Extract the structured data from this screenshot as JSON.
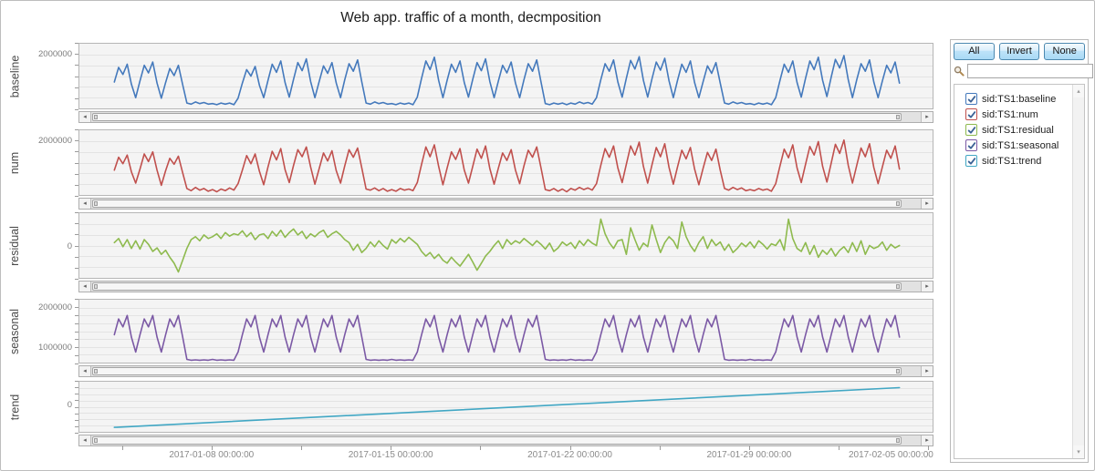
{
  "title": "Web app. traffic of a month, decmposition",
  "controls": {
    "all_label": "All",
    "invert_label": "Invert",
    "none_label": "None",
    "search_value": "",
    "search_placeholder": ""
  },
  "legend": {
    "items": [
      {
        "label": "sid:TS1:baseline",
        "color": "#4479BC",
        "checked": true
      },
      {
        "label": "sid:TS1:num",
        "color": "#C0504D",
        "checked": true
      },
      {
        "label": "sid:TS1:residual",
        "color": "#8EBA4E",
        "checked": true
      },
      {
        "label": "sid:TS1:seasonal",
        "color": "#7B59A5",
        "checked": true
      },
      {
        "label": "sid:TS1:trend",
        "color": "#41A7C4",
        "checked": true
      }
    ],
    "check_color": "#3D6396"
  },
  "chart_data": {
    "type": "line",
    "title": "Web app. traffic of a month, decmposition",
    "unit_scale": 1000000,
    "x_axis": {
      "unit": "days since 2017-01-01 00:00",
      "range": [
        2.8,
        36.2
      ],
      "ticks": [
        {
          "t": 8,
          "label": "2017-01-08 00:00:00"
        },
        {
          "t": 15,
          "label": "2017-01-15 00:00:00"
        },
        {
          "t": 22,
          "label": "2017-01-22 00:00:00"
        },
        {
          "t": 29,
          "label": "2017-01-29 00:00:00"
        },
        {
          "t": 36,
          "label": "2017-02-05 00:00:00"
        }
      ],
      "minor_ticks": [
        4.5,
        8,
        11.5,
        15,
        18.5,
        22,
        25.5,
        29,
        32.5,
        36
      ]
    },
    "panels": [
      {
        "name": "baseline",
        "color": "#4479BC",
        "ylim": [
          1.0,
          2.2
        ],
        "grid_divisions": 6,
        "yticks": [
          {
            "v": 2.0,
            "label": "2000000"
          }
        ],
        "t0": 4.1667,
        "dt": 0.16667,
        "values": [
          1.49,
          1.76,
          1.63,
          1.82,
          1.45,
          1.2,
          1.51,
          1.8,
          1.66,
          1.86,
          1.47,
          1.19,
          1.48,
          1.74,
          1.61,
          1.8,
          1.44,
          1.1,
          1.08,
          1.12,
          1.09,
          1.11,
          1.08,
          1.09,
          1.07,
          1.1,
          1.08,
          1.1,
          1.07,
          1.19,
          1.47,
          1.72,
          1.6,
          1.78,
          1.43,
          1.2,
          1.52,
          1.82,
          1.67,
          1.88,
          1.48,
          1.21,
          1.54,
          1.85,
          1.7,
          1.92,
          1.5,
          1.2,
          1.5,
          1.79,
          1.65,
          1.85,
          1.47,
          1.2,
          1.53,
          1.83,
          1.69,
          1.9,
          1.49,
          1.1,
          1.08,
          1.12,
          1.09,
          1.11,
          1.08,
          1.09,
          1.07,
          1.1,
          1.08,
          1.1,
          1.07,
          1.21,
          1.56,
          1.88,
          1.72,
          1.95,
          1.52,
          1.2,
          1.52,
          1.82,
          1.67,
          1.88,
          1.48,
          1.21,
          1.54,
          1.85,
          1.7,
          1.92,
          1.5,
          1.2,
          1.51,
          1.8,
          1.66,
          1.86,
          1.47,
          1.2,
          1.53,
          1.83,
          1.69,
          1.9,
          1.49,
          1.09,
          1.07,
          1.1,
          1.08,
          1.1,
          1.07,
          1.1,
          1.08,
          1.12,
          1.09,
          1.11,
          1.08,
          1.2,
          1.53,
          1.83,
          1.69,
          1.9,
          1.49,
          1.21,
          1.56,
          1.89,
          1.73,
          1.96,
          1.52,
          1.21,
          1.55,
          1.86,
          1.71,
          1.93,
          1.51,
          1.2,
          1.52,
          1.82,
          1.67,
          1.88,
          1.48,
          1.2,
          1.5,
          1.79,
          1.65,
          1.85,
          1.47,
          1.1,
          1.08,
          1.12,
          1.09,
          1.11,
          1.08,
          1.09,
          1.07,
          1.1,
          1.08,
          1.1,
          1.07,
          1.2,
          1.52,
          1.82,
          1.67,
          1.88,
          1.48,
          1.21,
          1.56,
          1.88,
          1.72,
          1.95,
          1.52,
          1.22,
          1.58,
          1.91,
          1.75,
          1.98,
          1.53,
          1.2,
          1.53,
          1.83,
          1.69,
          1.9,
          1.49,
          1.2,
          1.51,
          1.8,
          1.66,
          1.86,
          1.47
        ]
      },
      {
        "name": "num",
        "color": "#C0504D",
        "ylim": [
          1.0,
          2.2
        ],
        "grid_divisions": 6,
        "yticks": [
          {
            "v": 2.0,
            "label": "2000000"
          }
        ],
        "t0": 4.1667,
        "dt": 0.16667,
        "values": [
          1.46,
          1.7,
          1.58,
          1.74,
          1.43,
          1.22,
          1.48,
          1.76,
          1.62,
          1.8,
          1.46,
          1.18,
          1.45,
          1.68,
          1.57,
          1.72,
          1.41,
          1.12,
          1.08,
          1.14,
          1.09,
          1.12,
          1.07,
          1.1,
          1.06,
          1.11,
          1.08,
          1.13,
          1.09,
          1.21,
          1.46,
          1.73,
          1.58,
          1.76,
          1.44,
          1.19,
          1.52,
          1.81,
          1.65,
          1.86,
          1.47,
          1.23,
          1.55,
          1.84,
          1.71,
          1.89,
          1.52,
          1.2,
          1.49,
          1.78,
          1.63,
          1.82,
          1.45,
          1.22,
          1.54,
          1.84,
          1.7,
          1.87,
          1.5,
          1.11,
          1.09,
          1.13,
          1.08,
          1.12,
          1.07,
          1.1,
          1.07,
          1.12,
          1.09,
          1.11,
          1.08,
          1.23,
          1.57,
          1.89,
          1.71,
          1.93,
          1.53,
          1.19,
          1.5,
          1.8,
          1.66,
          1.86,
          1.46,
          1.22,
          1.53,
          1.85,
          1.68,
          1.91,
          1.49,
          1.2,
          1.5,
          1.78,
          1.64,
          1.84,
          1.46,
          1.21,
          1.54,
          1.83,
          1.7,
          1.89,
          1.5,
          1.1,
          1.08,
          1.12,
          1.07,
          1.11,
          1.06,
          1.12,
          1.09,
          1.14,
          1.1,
          1.13,
          1.09,
          1.21,
          1.55,
          1.86,
          1.7,
          1.91,
          1.5,
          1.23,
          1.57,
          1.91,
          1.74,
          1.98,
          1.53,
          1.22,
          1.56,
          1.88,
          1.71,
          1.95,
          1.51,
          1.2,
          1.52,
          1.83,
          1.67,
          1.88,
          1.48,
          1.19,
          1.5,
          1.79,
          1.64,
          1.85,
          1.46,
          1.12,
          1.09,
          1.14,
          1.1,
          1.13,
          1.08,
          1.1,
          1.08,
          1.12,
          1.09,
          1.11,
          1.07,
          1.21,
          1.54,
          1.85,
          1.69,
          1.93,
          1.5,
          1.23,
          1.57,
          1.9,
          1.74,
          1.99,
          1.53,
          1.24,
          1.59,
          1.94,
          1.77,
          2.02,
          1.55,
          1.22,
          1.55,
          1.87,
          1.71,
          1.95,
          1.51,
          1.21,
          1.52,
          1.83,
          1.68,
          1.91,
          1.48
        ]
      },
      {
        "name": "residual",
        "color": "#8EBA4E",
        "ylim": [
          -0.55,
          0.55
        ],
        "grid_divisions": 6,
        "yticks": [
          {
            "v": 0,
            "label": "0"
          }
        ],
        "t0": 4.1667,
        "dt": 0.16667,
        "values": [
          0.05,
          0.12,
          -0.02,
          0.1,
          -0.05,
          0.08,
          -0.06,
          0.1,
          0.02,
          -0.1,
          -0.04,
          -0.15,
          -0.08,
          -0.2,
          -0.3,
          -0.45,
          -0.25,
          -0.05,
          0.1,
          0.15,
          0.08,
          0.18,
          0.12,
          0.15,
          0.2,
          0.12,
          0.22,
          0.16,
          0.2,
          0.18,
          0.25,
          0.15,
          0.22,
          0.1,
          0.18,
          0.2,
          0.12,
          0.24,
          0.16,
          0.26,
          0.14,
          0.22,
          0.28,
          0.18,
          0.24,
          0.12,
          0.2,
          0.15,
          0.22,
          0.26,
          0.14,
          0.2,
          0.24,
          0.18,
          0.1,
          0.05,
          -0.08,
          0.02,
          -0.12,
          -0.05,
          0.06,
          -0.02,
          0.08,
          0.0,
          -0.06,
          0.1,
          0.04,
          0.12,
          0.06,
          0.14,
          0.08,
          0.02,
          -0.1,
          -0.18,
          -0.12,
          -0.22,
          -0.15,
          -0.25,
          -0.3,
          -0.2,
          -0.28,
          -0.35,
          -0.25,
          -0.15,
          -0.28,
          -0.42,
          -0.3,
          -0.18,
          -0.1,
          0.0,
          0.08,
          -0.05,
          0.1,
          0.02,
          0.08,
          0.04,
          0.12,
          0.06,
          0.0,
          0.08,
          0.02,
          -0.06,
          0.04,
          -0.1,
          -0.04,
          0.06,
          0.0,
          0.05,
          -0.05,
          0.08,
          0.0,
          0.1,
          0.04,
          0.0,
          0.45,
          0.2,
          0.05,
          -0.05,
          0.08,
          0.1,
          -0.15,
          0.3,
          0.1,
          -0.08,
          0.04,
          -0.02,
          0.35,
          0.1,
          -0.12,
          0.05,
          0.15,
          0.08,
          -0.05,
          0.4,
          0.15,
          0.0,
          -0.1,
          0.05,
          0.15,
          -0.05,
          0.1,
          0.0,
          0.06,
          -0.08,
          0.02,
          -0.12,
          -0.05,
          0.04,
          -0.02,
          0.06,
          -0.04,
          0.08,
          0.02,
          -0.06,
          0.03,
          0.0,
          0.1,
          -0.08,
          0.45,
          0.12,
          -0.05,
          -0.1,
          0.05,
          -0.15,
          0.0,
          -0.2,
          -0.08,
          -0.15,
          -0.05,
          -0.18,
          -0.08,
          -0.02,
          -0.12,
          0.05,
          -0.1,
          0.08,
          -0.15,
          0.0,
          -0.05,
          -0.02,
          0.06,
          -0.08,
          0.02,
          -0.04,
          0.0
        ]
      },
      {
        "name": "seasonal",
        "color": "#7B59A5",
        "ylim": [
          0.6,
          2.2
        ],
        "grid_divisions": 8,
        "yticks": [
          {
            "v": 2.0,
            "label": "2000000"
          },
          {
            "v": 1.0,
            "label": "1000000"
          }
        ],
        "t0": 4.1667,
        "dt": 0.16667,
        "values": [
          1.31,
          1.71,
          1.51,
          1.8,
          1.25,
          0.87,
          1.31,
          1.71,
          1.51,
          1.8,
          1.25,
          0.87,
          1.31,
          1.71,
          1.51,
          1.8,
          1.25,
          0.68,
          0.66,
          0.67,
          0.66,
          0.67,
          0.66,
          0.68,
          0.66,
          0.67,
          0.66,
          0.67,
          0.66,
          0.87,
          1.31,
          1.71,
          1.51,
          1.8,
          1.25,
          0.87,
          1.31,
          1.71,
          1.51,
          1.8,
          1.25,
          0.87,
          1.31,
          1.71,
          1.51,
          1.8,
          1.25,
          0.87,
          1.31,
          1.71,
          1.51,
          1.8,
          1.25,
          0.87,
          1.31,
          1.71,
          1.51,
          1.8,
          1.25,
          0.68,
          0.66,
          0.67,
          0.66,
          0.67,
          0.66,
          0.68,
          0.66,
          0.67,
          0.66,
          0.67,
          0.66,
          0.87,
          1.31,
          1.71,
          1.51,
          1.8,
          1.25,
          0.87,
          1.31,
          1.71,
          1.51,
          1.8,
          1.25,
          0.87,
          1.31,
          1.71,
          1.51,
          1.8,
          1.25,
          0.87,
          1.31,
          1.71,
          1.51,
          1.8,
          1.25,
          0.87,
          1.31,
          1.71,
          1.51,
          1.8,
          1.25,
          0.68,
          0.66,
          0.67,
          0.66,
          0.67,
          0.66,
          0.68,
          0.66,
          0.67,
          0.66,
          0.67,
          0.66,
          0.87,
          1.31,
          1.71,
          1.51,
          1.8,
          1.25,
          0.87,
          1.31,
          1.71,
          1.51,
          1.8,
          1.25,
          0.87,
          1.31,
          1.71,
          1.51,
          1.8,
          1.25,
          0.87,
          1.31,
          1.71,
          1.51,
          1.8,
          1.25,
          0.87,
          1.31,
          1.71,
          1.51,
          1.8,
          1.25,
          0.68,
          0.66,
          0.67,
          0.66,
          0.67,
          0.66,
          0.68,
          0.66,
          0.67,
          0.66,
          0.67,
          0.66,
          0.87,
          1.31,
          1.71,
          1.51,
          1.8,
          1.25,
          0.87,
          1.31,
          1.71,
          1.51,
          1.8,
          1.25,
          0.87,
          1.31,
          1.71,
          1.51,
          1.8,
          1.25,
          0.87,
          1.31,
          1.71,
          1.51,
          1.8,
          1.25,
          0.87,
          1.31,
          1.71,
          1.51,
          1.8,
          1.25
        ]
      },
      {
        "name": "trend",
        "color": "#41A7C4",
        "ylim": [
          -0.55,
          0.47
        ],
        "grid_divisions": 8,
        "yticks": [
          {
            "v": 0,
            "label": "0"
          }
        ],
        "t": [
          4.1667,
          34.8333
        ],
        "values": [
          -0.46,
          0.35
        ]
      }
    ]
  }
}
